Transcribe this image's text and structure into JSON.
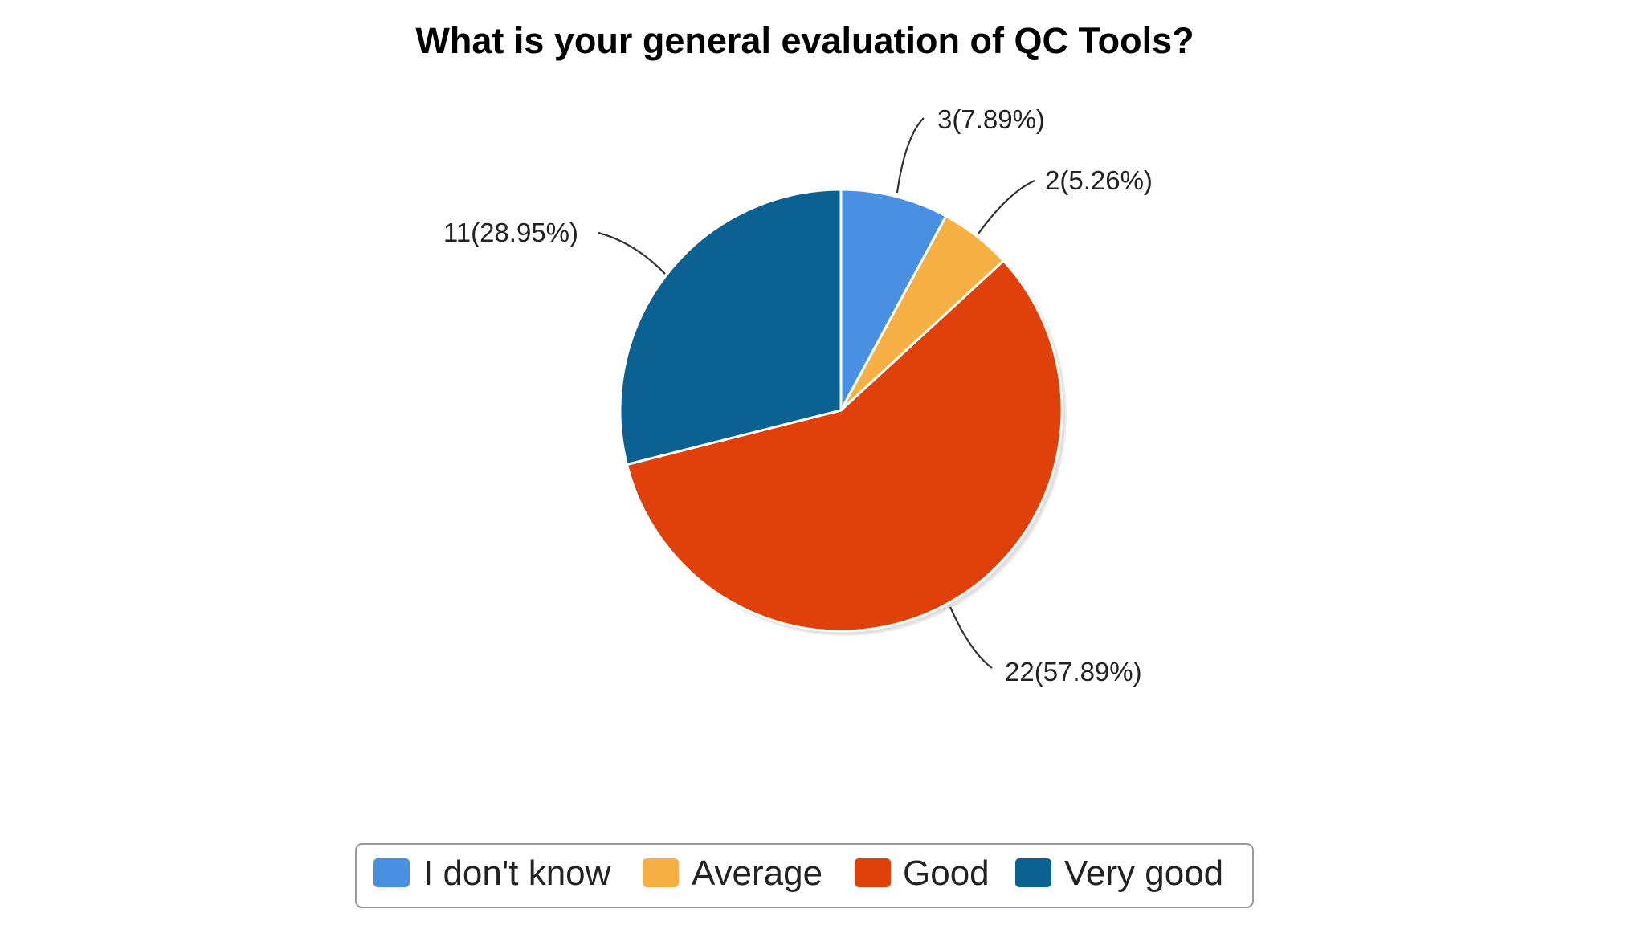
{
  "chart_data": {
    "type": "pie",
    "title": "What is your general evaluation of QC Tools?",
    "slices": [
      {
        "name": "I don't know",
        "value": 3,
        "label": "3(7.89%)",
        "color": "#4a90e2"
      },
      {
        "name": "Average",
        "value": 2,
        "label": "2(5.26%)",
        "color": "#f6b043"
      },
      {
        "name": "Good",
        "value": 22,
        "label": "22(57.89%)",
        "color": "#e0400a"
      },
      {
        "name": "Very good",
        "value": 11,
        "label": "11(28.95%)",
        "color": "#0a6192"
      }
    ],
    "start": "12 o'clock",
    "direction": "clockwise",
    "legend": {
      "placement": "bottom",
      "bordered": true
    }
  }
}
